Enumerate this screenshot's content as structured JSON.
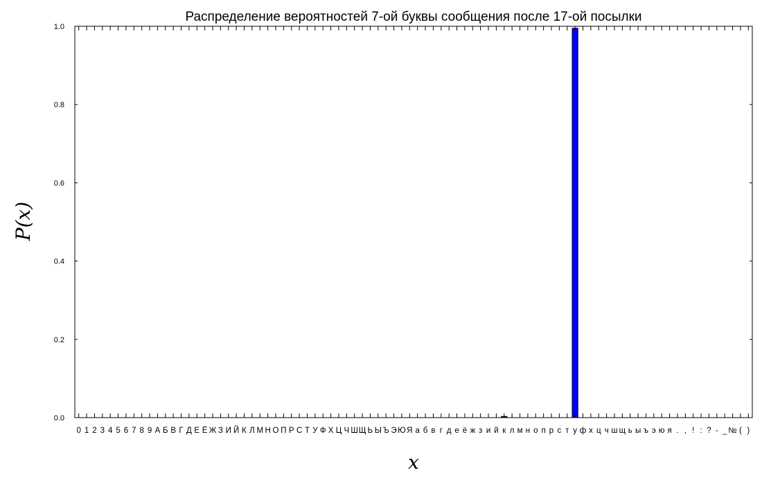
{
  "chart_data": {
    "type": "bar",
    "title": "Распределение вероятностей 7-ой буквы сообщения после 17-ой посылки",
    "xlabel": "x",
    "ylabel": "P(x)",
    "ylim": [
      0,
      1.0
    ],
    "yticks": [
      "0.0",
      "0.2",
      "0.4",
      "0.6",
      "0.8",
      "1.0"
    ],
    "grid": false,
    "bar_color": "#0000ff",
    "categories": [
      "0",
      "1",
      "2",
      "3",
      "4",
      "5",
      "6",
      "7",
      "8",
      "9",
      "А",
      "Б",
      "В",
      "Г",
      "Д",
      "Е",
      "Ё",
      "Ж",
      "З",
      "И",
      "Й",
      "К",
      "Л",
      "М",
      "Н",
      "О",
      "П",
      "Р",
      "С",
      "Т",
      "У",
      "Ф",
      "Х",
      "Ц",
      "Ч",
      "Ш",
      "Щ",
      "Ь",
      "Ы",
      "Ъ",
      "Э",
      "Ю",
      "Я",
      "а",
      "б",
      "в",
      "г",
      "д",
      "е",
      "ё",
      "ж",
      "з",
      "и",
      "й",
      "к",
      "л",
      "м",
      "н",
      "о",
      "п",
      "р",
      "с",
      "т",
      "у",
      "ф",
      "х",
      "ц",
      "ч",
      "ш",
      "щ",
      "ь",
      "ы",
      "ъ",
      "э",
      "ю",
      "я",
      ".",
      ",",
      "!",
      ":",
      "?",
      "-",
      "_",
      "№",
      "(",
      ")"
    ],
    "values": [
      0,
      0,
      0,
      0,
      0,
      0,
      0,
      0,
      0,
      0,
      0,
      0,
      0,
      0,
      0,
      0,
      0,
      0,
      0,
      0,
      0,
      0,
      0,
      0,
      0,
      0,
      0,
      0,
      0,
      0,
      0,
      0,
      0,
      0,
      0,
      0,
      0,
      0,
      0,
      0,
      0,
      0,
      0,
      0,
      0,
      0,
      0,
      0,
      0,
      0,
      0,
      0,
      0,
      0,
      0.003,
      0,
      0,
      0,
      0,
      0,
      0,
      0,
      0,
      0.995,
      0,
      0,
      0,
      0,
      0,
      0,
      0,
      0,
      0,
      0,
      0,
      0,
      0,
      0,
      0,
      0,
      0,
      0,
      0,
      0,
      0,
      0
    ]
  }
}
